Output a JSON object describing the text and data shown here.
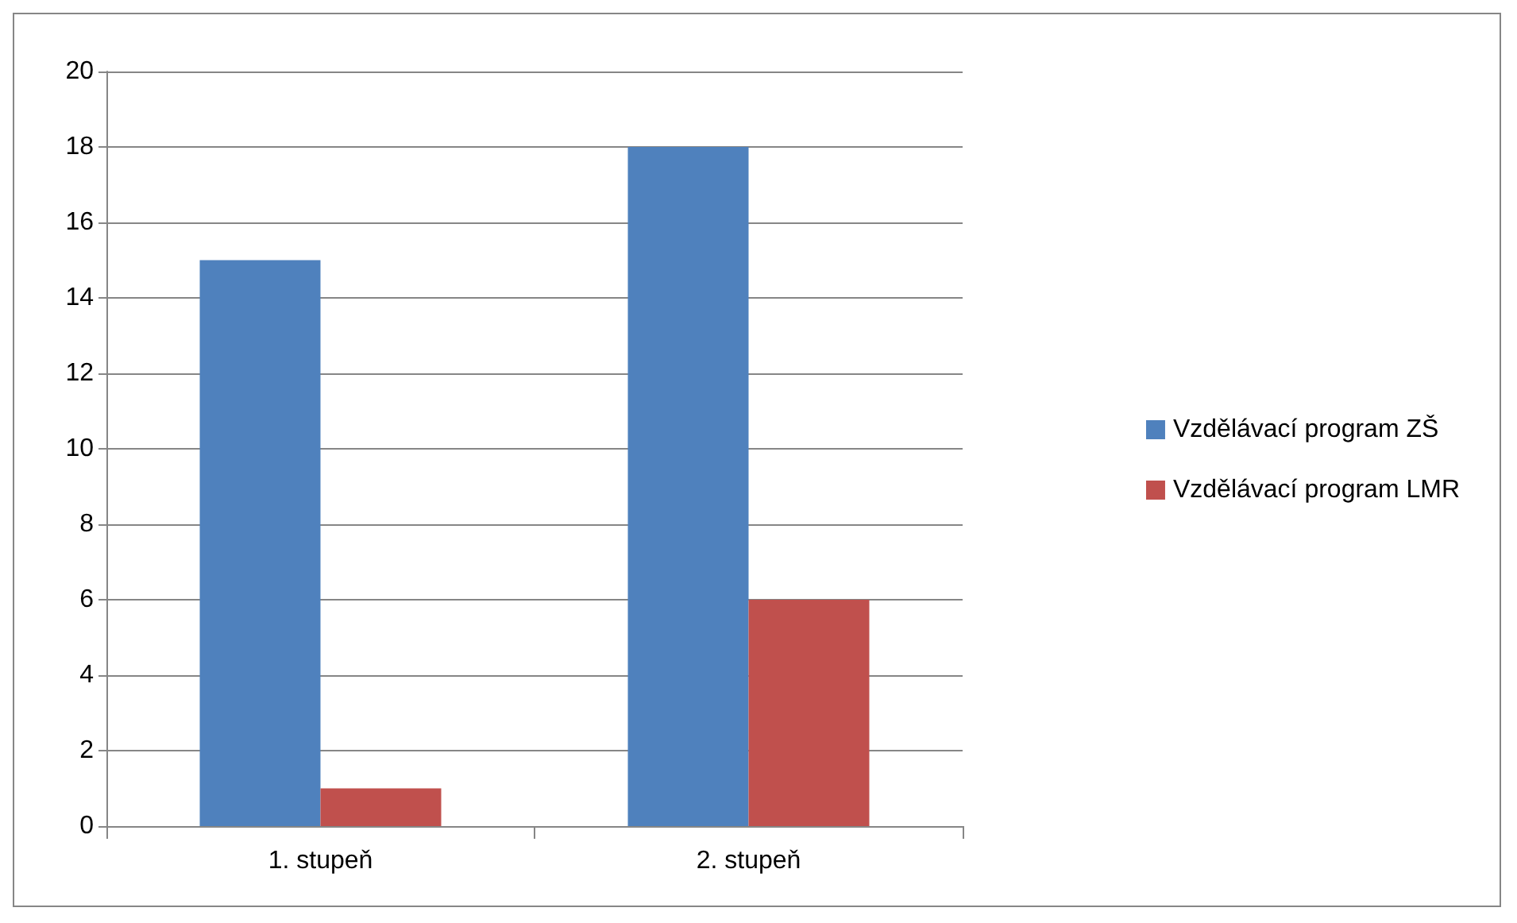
{
  "chart_data": {
    "type": "bar",
    "categories": [
      "1. stupeň",
      "2. stupeň"
    ],
    "series": [
      {
        "name": "Vzdělávací program ZŠ",
        "color": "#4f81bd",
        "values": [
          15,
          18
        ]
      },
      {
        "name": "Vzdělávací program LMR",
        "color": "#c0504d",
        "values": [
          1,
          6
        ]
      }
    ],
    "ylim": [
      0,
      20
    ],
    "yticks": [
      0,
      2,
      4,
      6,
      8,
      10,
      12,
      14,
      16,
      18,
      20
    ],
    "grid": "y",
    "legend": "right"
  }
}
